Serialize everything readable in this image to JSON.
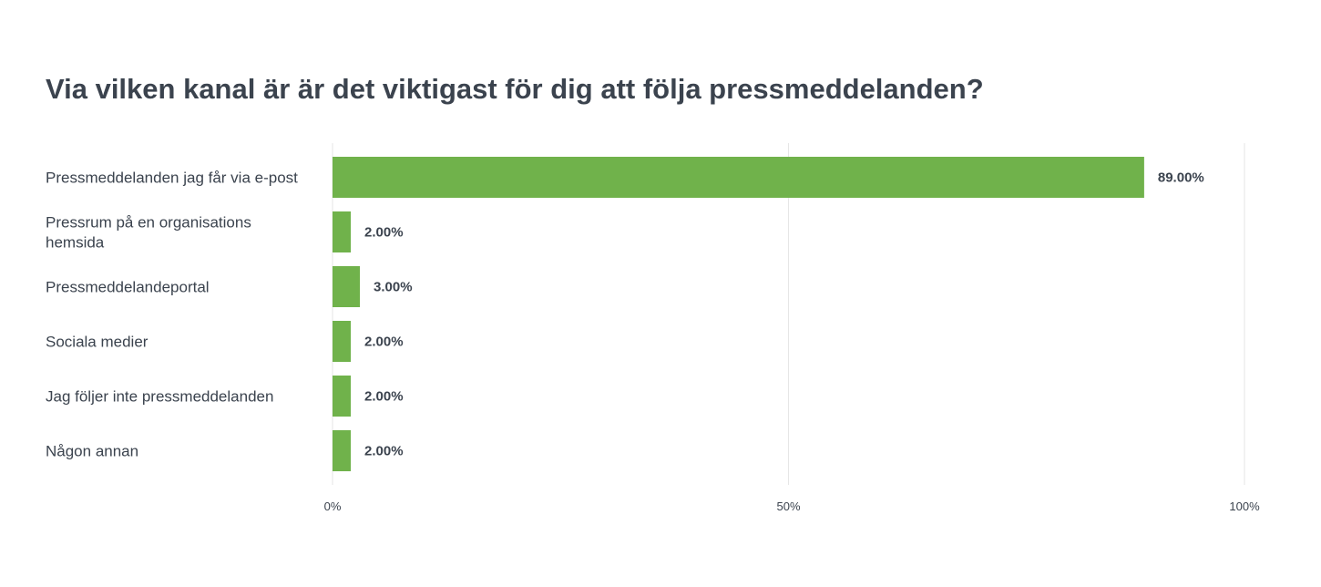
{
  "chart_data": {
    "type": "bar",
    "orientation": "horizontal",
    "title": "Via vilken kanal är är det viktigast för dig att följa pressmeddelanden?",
    "categories": [
      "Pressmeddelanden jag får via e-post",
      "Pressrum på en organisations hemsida",
      "Pressmeddelandeportal",
      "Sociala medier",
      "Jag följer inte pressmeddelanden",
      "Någon annan"
    ],
    "values": [
      89,
      2,
      3,
      2,
      2,
      2
    ],
    "value_labels": [
      "89.00%",
      "2.00%",
      "3.00%",
      "2.00%",
      "2.00%",
      "2.00%"
    ],
    "xlim": [
      0,
      100
    ],
    "x_ticks": [
      0,
      50,
      100
    ],
    "x_tick_labels": [
      "0%",
      "50%",
      "100%"
    ],
    "grid": true,
    "xlabel": "",
    "ylabel": "",
    "colors": {
      "bar": "#70b24b",
      "text": "#3b434e",
      "grid": "#e6e6e6"
    }
  }
}
